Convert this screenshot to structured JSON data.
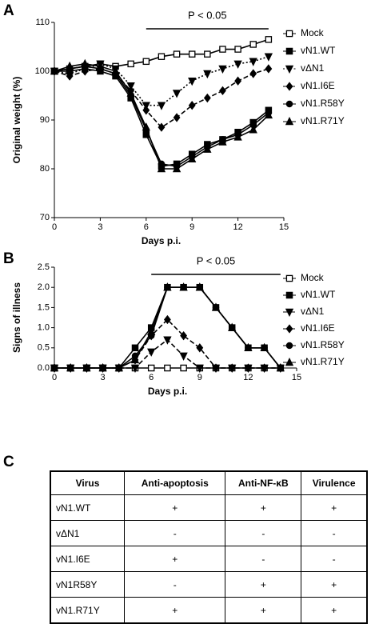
{
  "panel_labels": [
    "A",
    "B",
    "C"
  ],
  "chart_data": [
    {
      "type": "line",
      "y_label": "Original weight (%)",
      "x_label": "Days p.i.",
      "annotation": "P < 0.05",
      "x": [
        0,
        1,
        2,
        3,
        4,
        5,
        6,
        7,
        8,
        9,
        10,
        11,
        12,
        13,
        14
      ],
      "xlim": [
        0,
        15
      ],
      "xticks": [
        0,
        3,
        6,
        9,
        12,
        15
      ],
      "ylim": [
        70,
        110
      ],
      "yticks": [
        70,
        80,
        90,
        100,
        110
      ],
      "legend": "right",
      "series": [
        {
          "name": "Mock",
          "color": "#000000",
          "marker": "square-open",
          "dash": "solid",
          "values": [
            100,
            100.5,
            101,
            101.5,
            101,
            101.5,
            102,
            103,
            103.5,
            103.5,
            103.5,
            104.5,
            104.5,
            105.5,
            106.5
          ]
        },
        {
          "name": "vN1.WT",
          "color": "#000000",
          "marker": "square",
          "dash": "solid",
          "values": [
            100,
            100,
            100.5,
            100,
            99,
            94.5,
            87,
            80.5,
            81,
            83,
            85,
            86,
            87.5,
            89.5,
            92
          ]
        },
        {
          "name": "vΔN1",
          "color": "#000000",
          "marker": "triangle-down",
          "dash": "dotted",
          "values": [
            100,
            99.5,
            100.5,
            101.5,
            100.5,
            97,
            93,
            93,
            95.5,
            98,
            99.5,
            100.5,
            101.5,
            102,
            103
          ]
        },
        {
          "name": "vN1.I6E",
          "color": "#000000",
          "marker": "diamond",
          "dash": "dashed",
          "values": [
            100,
            99,
            100,
            100.5,
            99.5,
            96,
            92,
            88.5,
            90.5,
            93,
            94.5,
            96,
            98,
            99.5,
            100.5
          ]
        },
        {
          "name": "vN1.R58Y",
          "color": "#000000",
          "marker": "circle",
          "dash": "solid",
          "values": [
            100,
            100.5,
            101,
            100.5,
            99.5,
            95,
            88,
            81,
            80.5,
            82.5,
            84.5,
            86,
            87,
            89,
            91.5
          ]
        },
        {
          "name": "vN1.R71Y",
          "color": "#000000",
          "marker": "triangle",
          "dash": "solid",
          "values": [
            100,
            101,
            101.5,
            101,
            100,
            95.5,
            88.5,
            80,
            80,
            82,
            84,
            85.5,
            86.5,
            88,
            91
          ]
        }
      ]
    },
    {
      "type": "line",
      "y_label": "Signs of illness",
      "x_label": "Days p.i.",
      "annotation": "P < 0.05",
      "x": [
        0,
        1,
        2,
        3,
        4,
        5,
        6,
        7,
        8,
        9,
        10,
        11,
        12,
        13,
        14
      ],
      "xlim": [
        0,
        15
      ],
      "xticks": [
        0,
        3,
        6,
        9,
        12,
        15
      ],
      "ylim": [
        0,
        2.5
      ],
      "yticks": [
        {
          "value": 0,
          "label": "0.0"
        },
        {
          "value": 0.5,
          "label": "0.5"
        },
        {
          "value": 1,
          "label": "1.0"
        },
        {
          "value": 1.5,
          "label": "1.5"
        },
        {
          "value": 2,
          "label": "2.0"
        },
        {
          "value": 2.5,
          "label": "2.5"
        }
      ],
      "legend": "right",
      "series": [
        {
          "name": "Mock",
          "color": "#000000",
          "marker": "square-open",
          "dash": "solid",
          "values": [
            0,
            0,
            0,
            0,
            0,
            0,
            0,
            0,
            0,
            0,
            0,
            0,
            0,
            0,
            0
          ]
        },
        {
          "name": "vN1.WT",
          "color": "#000000",
          "marker": "square",
          "dash": "solid",
          "values": [
            0,
            0,
            0,
            0,
            0,
            0.5,
            1,
            2,
            2,
            2,
            1.5,
            1,
            0.5,
            0.5,
            0
          ]
        },
        {
          "name": "vΔN1",
          "color": "#000000",
          "marker": "triangle-down",
          "dash": "dashed",
          "values": [
            0,
            0,
            0,
            0,
            0,
            0,
            0.4,
            0.7,
            0.3,
            0,
            0,
            0,
            0,
            0,
            0
          ]
        },
        {
          "name": "vN1.I6E",
          "color": "#000000",
          "marker": "diamond",
          "dash": "dashed",
          "values": [
            0,
            0,
            0,
            0,
            0,
            0.2,
            0.8,
            1.2,
            0.8,
            0.5,
            0,
            0,
            0,
            0,
            0
          ]
        },
        {
          "name": "vN1.R58Y",
          "color": "#000000",
          "marker": "circle",
          "dash": "solid",
          "values": [
            0,
            0,
            0,
            0,
            0,
            0.3,
            0.8,
            2,
            2,
            2,
            1.5,
            1,
            0.5,
            0.5,
            0
          ]
        },
        {
          "name": "vN1.R71Y",
          "color": "#000000",
          "marker": "triangle",
          "dash": "solid",
          "values": [
            0,
            0,
            0,
            0,
            0,
            0.2,
            0.9,
            2,
            2,
            2,
            1.5,
            1,
            0.5,
            0.5,
            0
          ]
        }
      ]
    }
  ],
  "table": {
    "columns": [
      "Virus",
      "Anti-apoptosis",
      "Anti-NF-κB",
      "Virulence"
    ],
    "rows": [
      [
        "vN1.WT",
        "+",
        "+",
        "+"
      ],
      [
        "vΔN1",
        "-",
        "-",
        "-"
      ],
      [
        "vN1.I6E",
        "+",
        "-",
        "-"
      ],
      [
        "vN1R58Y",
        "-",
        "+",
        "+"
      ],
      [
        "vN1.R71Y",
        "+",
        "+",
        "+"
      ]
    ]
  }
}
